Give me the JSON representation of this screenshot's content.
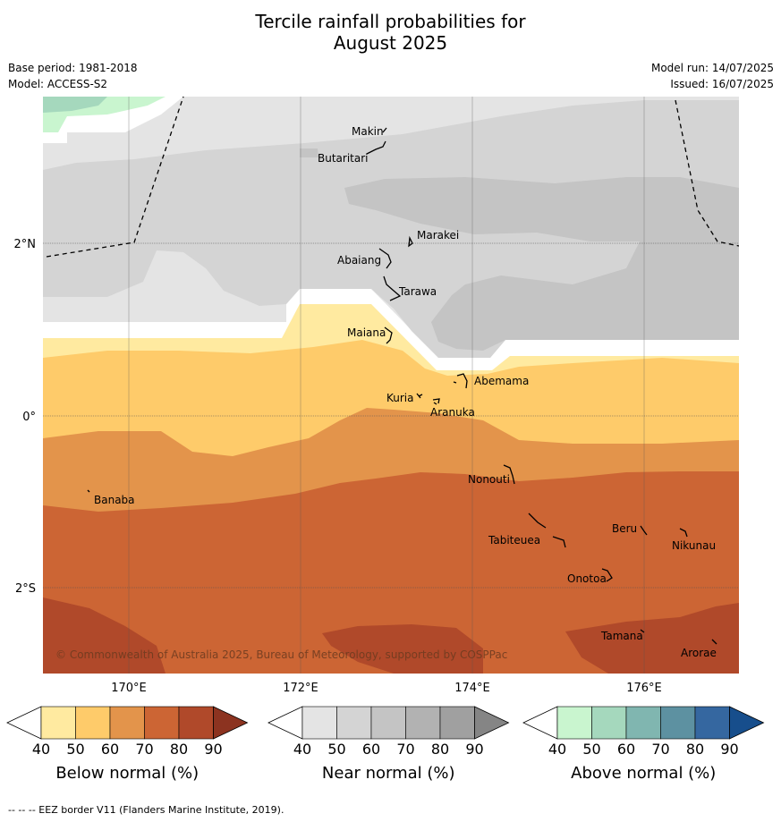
{
  "title": {
    "line1": "Tercile rainfall probabilities for",
    "line2": "August 2025"
  },
  "meta": {
    "base_period": "Base period: 1981-2018",
    "model": "Model: ACCESS-S2",
    "model_run": "Model run: 14/07/2025",
    "issued": "Issued: 16/07/2025"
  },
  "map": {
    "lat_labels": [
      "2°N",
      "0°",
      "2°S"
    ],
    "lon_labels": [
      "170°E",
      "172°E",
      "174°E",
      "176°E"
    ],
    "copyright": "© Commonwealth of Australia 2025, Bureau of Meteorology, supported by COSPPac",
    "islands": [
      "Makin",
      "Butaritari",
      "Marakei",
      "Abaiang",
      "Tarawa",
      "Maiana",
      "Abemama",
      "Kuria",
      "Aranuka",
      "Nonouti",
      "Banaba",
      "Tabiteuea",
      "Beru",
      "Nikunau",
      "Onotoa",
      "Tamana",
      "Arorae"
    ]
  },
  "colorbars": [
    {
      "label": "Below normal (%)",
      "ticks": [
        "40",
        "50",
        "60",
        "70",
        "80",
        "90"
      ],
      "colors": [
        "#ffffff",
        "#ffeaa0",
        "#fecb6a",
        "#e3944b",
        "#cc6534",
        "#b0492a",
        "#8c3320"
      ]
    },
    {
      "label": "Near normal (%)",
      "ticks": [
        "40",
        "50",
        "60",
        "70",
        "80",
        "90"
      ],
      "colors": [
        "#ffffff",
        "#e4e4e4",
        "#d4d4d4",
        "#c4c4c4",
        "#b2b2b2",
        "#a0a0a0",
        "#858585"
      ]
    },
    {
      "label": "Above normal (%)",
      "ticks": [
        "40",
        "50",
        "60",
        "70",
        "80",
        "90"
      ],
      "colors": [
        "#ffffff",
        "#c9f5cf",
        "#a5d8bd",
        "#80b6b0",
        "#5d91a1",
        "#3567a0",
        "#174e8c"
      ]
    }
  ],
  "footnote": "--  --  -- EEZ border V11 (Flanders Marine Institute, 2019)."
}
